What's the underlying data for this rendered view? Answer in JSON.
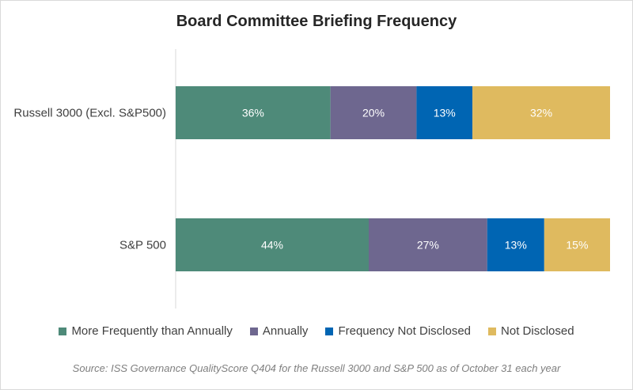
{
  "chart_data": {
    "type": "bar",
    "orientation": "horizontal",
    "stacked": true,
    "title": "Board Committee Briefing Frequency",
    "categories": [
      "Russell 3000 (Excl. S&P500)",
      "S&P 500"
    ],
    "series": [
      {
        "name": "More Frequently than Annually",
        "values": [
          36,
          44
        ],
        "labels": [
          "36%",
          "44%"
        ],
        "color": "#4e8a79"
      },
      {
        "name": "Annually",
        "values": [
          20,
          27
        ],
        "labels": [
          "20%",
          "27%"
        ],
        "color": "#6e678f"
      },
      {
        "name": "Frequency Not Disclosed",
        "values": [
          13,
          13
        ],
        "labels": [
          "13%",
          "13%"
        ],
        "color": "#0065b3"
      },
      {
        "name": "Not Disclosed",
        "values": [
          32,
          15
        ],
        "labels": [
          "32%",
          "15%"
        ],
        "color": "#dfba5f"
      }
    ],
    "xlim": [
      0,
      100
    ],
    "grid": false,
    "legend_position": "bottom",
    "source": "Source: ISS Governance QualityScore Q404 for the Russell 3000 and S&P 500 as of October 31 each year"
  }
}
